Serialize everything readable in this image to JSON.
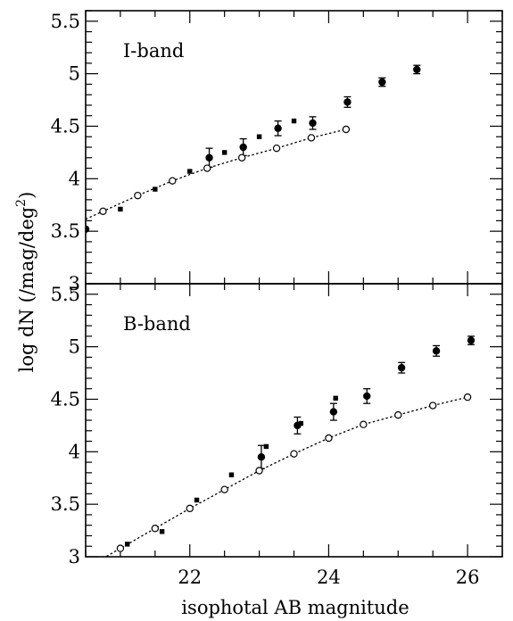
{
  "figure": {
    "xlabel": "isophotal AB magnitude",
    "ylabel": "log dN (/mag/deg",
    "ylabel_sup": "2",
    "ylabel_close": ")"
  },
  "chart_data": [
    {
      "type": "scatter",
      "title": "I-band",
      "xlim": [
        20.5,
        26.5
      ],
      "ylim": [
        3,
        5.6
      ],
      "xticks": [
        22,
        24,
        26
      ],
      "xtick_labels": [
        "22",
        "24",
        "26"
      ],
      "yticks": [
        3,
        3.5,
        4,
        4.5,
        5,
        5.5
      ],
      "ytick_labels": [
        "3",
        "3.5",
        "4",
        "4.5",
        "5",
        "5.5"
      ],
      "series": [
        {
          "marker": "filled-circle-errorbar",
          "points": [
            {
              "x": 20.5,
              "y": 3.52,
              "err": 0.0
            },
            {
              "x": 22.28,
              "y": 4.2,
              "err": 0.09
            },
            {
              "x": 22.77,
              "y": 4.3,
              "err": 0.08
            },
            {
              "x": 23.27,
              "y": 4.48,
              "err": 0.07
            },
            {
              "x": 23.77,
              "y": 4.53,
              "err": 0.06
            },
            {
              "x": 24.27,
              "y": 4.73,
              "err": 0.05
            },
            {
              "x": 24.77,
              "y": 4.92,
              "err": 0.04
            },
            {
              "x": 25.27,
              "y": 5.04,
              "err": 0.04
            }
          ]
        },
        {
          "marker": "filled-square",
          "points": [
            {
              "x": 21.0,
              "y": 3.71
            },
            {
              "x": 21.5,
              "y": 3.9
            },
            {
              "x": 22.0,
              "y": 4.07
            },
            {
              "x": 22.5,
              "y": 4.25
            },
            {
              "x": 23.0,
              "y": 4.4
            },
            {
              "x": 23.5,
              "y": 4.55
            }
          ]
        },
        {
          "marker": "open-circle-dotted-line",
          "points": [
            {
              "x": 20.75,
              "y": 3.69
            },
            {
              "x": 21.25,
              "y": 3.84
            },
            {
              "x": 21.75,
              "y": 3.98
            },
            {
              "x": 22.25,
              "y": 4.1
            },
            {
              "x": 22.75,
              "y": 4.2
            },
            {
              "x": 23.25,
              "y": 4.29
            },
            {
              "x": 23.75,
              "y": 4.39
            },
            {
              "x": 24.25,
              "y": 4.47
            }
          ],
          "line_x": [
            20.5,
            24.25
          ]
        }
      ]
    },
    {
      "type": "scatter",
      "title": "B-band",
      "xlim": [
        20.5,
        26.5
      ],
      "ylim": [
        3,
        5.6
      ],
      "xticks": [
        22,
        24,
        26
      ],
      "xtick_labels": [
        "22",
        "24",
        "26"
      ],
      "yticks": [
        3,
        3.5,
        4,
        4.5,
        5,
        5.5
      ],
      "ytick_labels": [
        "3",
        "3.5",
        "4",
        "4.5",
        "5",
        "5.5"
      ],
      "series": [
        {
          "marker": "filled-circle-errorbar",
          "points": [
            {
              "x": 23.03,
              "y": 3.95,
              "err": 0.11
            },
            {
              "x": 23.55,
              "y": 4.25,
              "err": 0.08
            },
            {
              "x": 24.07,
              "y": 4.38,
              "err": 0.08
            },
            {
              "x": 24.55,
              "y": 4.53,
              "err": 0.07
            },
            {
              "x": 25.05,
              "y": 4.8,
              "err": 0.05
            },
            {
              "x": 25.55,
              "y": 4.96,
              "err": 0.05
            },
            {
              "x": 26.05,
              "y": 5.06,
              "err": 0.04
            }
          ]
        },
        {
          "marker": "filled-square",
          "points": [
            {
              "x": 21.1,
              "y": 3.12
            },
            {
              "x": 21.6,
              "y": 3.24
            },
            {
              "x": 22.1,
              "y": 3.54
            },
            {
              "x": 22.6,
              "y": 3.78
            },
            {
              "x": 23.1,
              "y": 4.05
            },
            {
              "x": 23.6,
              "y": 4.27
            },
            {
              "x": 24.1,
              "y": 4.51
            }
          ]
        },
        {
          "marker": "open-circle-dotted-line",
          "points": [
            {
              "x": 21.0,
              "y": 3.08
            },
            {
              "x": 21.5,
              "y": 3.27
            },
            {
              "x": 22.0,
              "y": 3.46
            },
            {
              "x": 22.5,
              "y": 3.64
            },
            {
              "x": 23.0,
              "y": 3.82
            },
            {
              "x": 23.5,
              "y": 3.98
            },
            {
              "x": 24.0,
              "y": 4.13
            },
            {
              "x": 24.5,
              "y": 4.26
            },
            {
              "x": 25.0,
              "y": 4.35
            },
            {
              "x": 25.5,
              "y": 4.44
            },
            {
              "x": 26.0,
              "y": 4.52
            }
          ],
          "line_x": [
            20.8,
            26.0
          ]
        }
      ]
    }
  ]
}
